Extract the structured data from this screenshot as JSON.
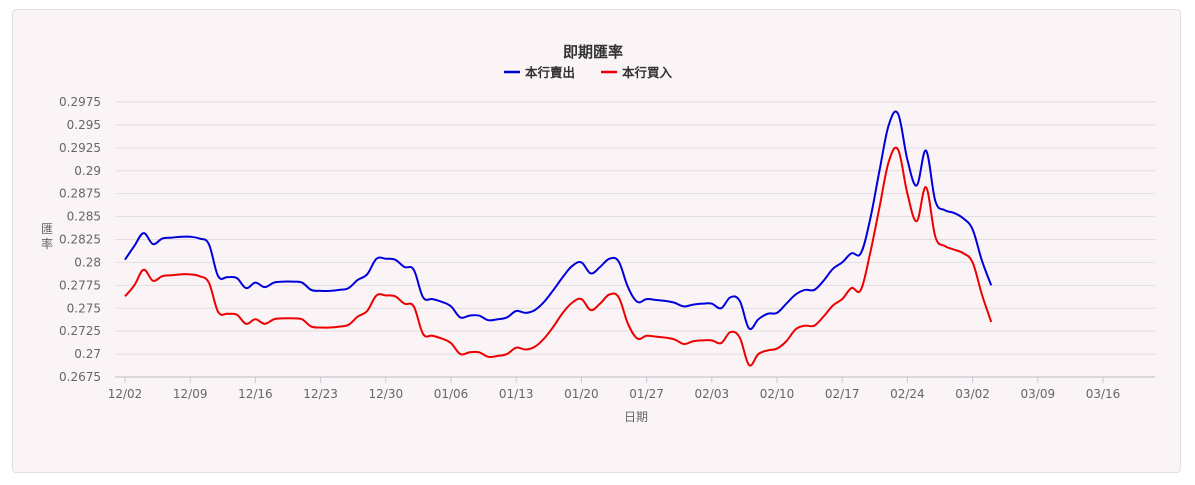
{
  "chart_data": {
    "type": "line",
    "title": "即期匯率",
    "xlabel": "日期",
    "ylabel": "匯率",
    "ylim": [
      0.2675,
      0.2975
    ],
    "yticks": [
      "0.2675",
      "0.27",
      "0.2725",
      "0.275",
      "0.2775",
      "0.28",
      "0.2825",
      "0.285",
      "0.2875",
      "0.29",
      "0.2925",
      "0.295",
      "0.2975"
    ],
    "xticks": [
      "12/02",
      "12/09",
      "12/16",
      "12/23",
      "12/30",
      "01/06",
      "01/13",
      "01/20",
      "01/27",
      "02/03",
      "02/10",
      "02/17",
      "02/24",
      "03/02",
      "03/09",
      "03/16"
    ],
    "grid": true,
    "legend": "top-center",
    "colors": {
      "sell": "#0000dd",
      "buy": "#ee0000"
    },
    "series": [
      {
        "name": "本行賣出",
        "color": "#0000dd",
        "points": [
          [
            0,
            0.2803
          ],
          [
            1,
            0.2818
          ],
          [
            2,
            0.2832
          ],
          [
            3,
            0.282
          ],
          [
            4,
            0.2826
          ],
          [
            5,
            0.2827
          ],
          [
            6,
            0.2828
          ],
          [
            7,
            0.2828
          ],
          [
            8,
            0.2826
          ],
          [
            9,
            0.282
          ],
          [
            10,
            0.2785
          ],
          [
            11,
            0.2784
          ],
          [
            12,
            0.2783
          ],
          [
            13,
            0.2772
          ],
          [
            14,
            0.2778
          ],
          [
            15,
            0.2773
          ],
          [
            16,
            0.2778
          ],
          [
            17,
            0.2779
          ],
          [
            18,
            0.2779
          ],
          [
            19,
            0.2778
          ],
          [
            20,
            0.277
          ],
          [
            21,
            0.2769
          ],
          [
            22,
            0.2769
          ],
          [
            23,
            0.277
          ],
          [
            24,
            0.2772
          ],
          [
            25,
            0.2781
          ],
          [
            26,
            0.2787
          ],
          [
            27,
            0.2804
          ],
          [
            28,
            0.2804
          ],
          [
            29,
            0.2803
          ],
          [
            30,
            0.2795
          ],
          [
            31,
            0.2792
          ],
          [
            32,
            0.2762
          ],
          [
            33,
            0.276
          ],
          [
            34,
            0.2757
          ],
          [
            35,
            0.2752
          ],
          [
            36,
            0.274
          ],
          [
            37,
            0.2742
          ],
          [
            38,
            0.2742
          ],
          [
            39,
            0.2737
          ],
          [
            40,
            0.2738
          ],
          [
            41,
            0.274
          ],
          [
            42,
            0.2747
          ],
          [
            43,
            0.2745
          ],
          [
            44,
            0.2748
          ],
          [
            45,
            0.2757
          ],
          [
            46,
            0.277
          ],
          [
            47,
            0.2784
          ],
          [
            48,
            0.2796
          ],
          [
            49,
            0.28
          ],
          [
            50,
            0.2788
          ],
          [
            51,
            0.2795
          ],
          [
            52,
            0.2804
          ],
          [
            53,
            0.2801
          ],
          [
            54,
            0.2773
          ],
          [
            55,
            0.2757
          ],
          [
            56,
            0.276
          ],
          [
            57,
            0.2759
          ],
          [
            58,
            0.2758
          ],
          [
            59,
            0.2756
          ],
          [
            60,
            0.2752
          ],
          [
            61,
            0.2754
          ],
          [
            62,
            0.2755
          ],
          [
            63,
            0.2755
          ],
          [
            64,
            0.275
          ],
          [
            65,
            0.2762
          ],
          [
            66,
            0.2758
          ],
          [
            67,
            0.2728
          ],
          [
            68,
            0.2738
          ],
          [
            69,
            0.2744
          ],
          [
            70,
            0.2745
          ],
          [
            71,
            0.2755
          ],
          [
            72,
            0.2765
          ],
          [
            73,
            0.277
          ],
          [
            74,
            0.277
          ],
          [
            75,
            0.278
          ],
          [
            76,
            0.2793
          ],
          [
            77,
            0.28
          ],
          [
            78,
            0.281
          ],
          [
            79,
            0.281
          ],
          [
            80,
            0.2847
          ],
          [
            81,
            0.29
          ],
          [
            82,
            0.295
          ],
          [
            83,
            0.2962
          ],
          [
            84,
            0.2912
          ],
          [
            85,
            0.2884
          ],
          [
            86,
            0.2922
          ],
          [
            87,
            0.2867
          ],
          [
            88,
            0.2857
          ],
          [
            89,
            0.2854
          ],
          [
            90,
            0.2848
          ],
          [
            91,
            0.2836
          ],
          [
            92,
            0.2802
          ],
          [
            93,
            0.2775
          ]
        ]
      },
      {
        "name": "本行買入",
        "color": "#ee0000",
        "points": [
          [
            0,
            0.2763
          ],
          [
            1,
            0.2775
          ],
          [
            2,
            0.2792
          ],
          [
            3,
            0.278
          ],
          [
            4,
            0.2785
          ],
          [
            5,
            0.2786
          ],
          [
            6,
            0.2787
          ],
          [
            7,
            0.2787
          ],
          [
            8,
            0.2785
          ],
          [
            9,
            0.2778
          ],
          [
            10,
            0.2746
          ],
          [
            11,
            0.2744
          ],
          [
            12,
            0.2743
          ],
          [
            13,
            0.2733
          ],
          [
            14,
            0.2738
          ],
          [
            15,
            0.2733
          ],
          [
            16,
            0.2738
          ],
          [
            17,
            0.2739
          ],
          [
            18,
            0.2739
          ],
          [
            19,
            0.2738
          ],
          [
            20,
            0.273
          ],
          [
            21,
            0.2729
          ],
          [
            22,
            0.2729
          ],
          [
            23,
            0.273
          ],
          [
            24,
            0.2732
          ],
          [
            25,
            0.2741
          ],
          [
            26,
            0.2747
          ],
          [
            27,
            0.2764
          ],
          [
            28,
            0.2764
          ],
          [
            29,
            0.2763
          ],
          [
            30,
            0.2755
          ],
          [
            31,
            0.2752
          ],
          [
            32,
            0.2722
          ],
          [
            33,
            0.272
          ],
          [
            34,
            0.2717
          ],
          [
            35,
            0.2712
          ],
          [
            36,
            0.27
          ],
          [
            37,
            0.2702
          ],
          [
            38,
            0.2702
          ],
          [
            39,
            0.2697
          ],
          [
            40,
            0.2698
          ],
          [
            41,
            0.27
          ],
          [
            42,
            0.2707
          ],
          [
            43,
            0.2705
          ],
          [
            44,
            0.2708
          ],
          [
            45,
            0.2717
          ],
          [
            46,
            0.273
          ],
          [
            47,
            0.2745
          ],
          [
            48,
            0.2756
          ],
          [
            49,
            0.276
          ],
          [
            50,
            0.2748
          ],
          [
            51,
            0.2755
          ],
          [
            52,
            0.2765
          ],
          [
            53,
            0.2762
          ],
          [
            54,
            0.2733
          ],
          [
            55,
            0.2717
          ],
          [
            56,
            0.272
          ],
          [
            57,
            0.2719
          ],
          [
            58,
            0.2718
          ],
          [
            59,
            0.2716
          ],
          [
            60,
            0.2711
          ],
          [
            61,
            0.2714
          ],
          [
            62,
            0.2715
          ],
          [
            63,
            0.2715
          ],
          [
            64,
            0.2712
          ],
          [
            65,
            0.2724
          ],
          [
            66,
            0.2718
          ],
          [
            67,
            0.2688
          ],
          [
            68,
            0.27
          ],
          [
            69,
            0.2704
          ],
          [
            70,
            0.2706
          ],
          [
            71,
            0.2714
          ],
          [
            72,
            0.2727
          ],
          [
            73,
            0.2731
          ],
          [
            74,
            0.2731
          ],
          [
            75,
            0.2741
          ],
          [
            76,
            0.2753
          ],
          [
            77,
            0.276
          ],
          [
            78,
            0.2772
          ],
          [
            79,
            0.277
          ],
          [
            80,
            0.281
          ],
          [
            81,
            0.286
          ],
          [
            82,
            0.291
          ],
          [
            83,
            0.2923
          ],
          [
            84,
            0.2875
          ],
          [
            85,
            0.2845
          ],
          [
            86,
            0.2882
          ],
          [
            87,
            0.2828
          ],
          [
            88,
            0.2818
          ],
          [
            89,
            0.2814
          ],
          [
            90,
            0.281
          ],
          [
            91,
            0.28
          ],
          [
            92,
            0.2765
          ],
          [
            93,
            0.2735
          ]
        ]
      }
    ]
  }
}
